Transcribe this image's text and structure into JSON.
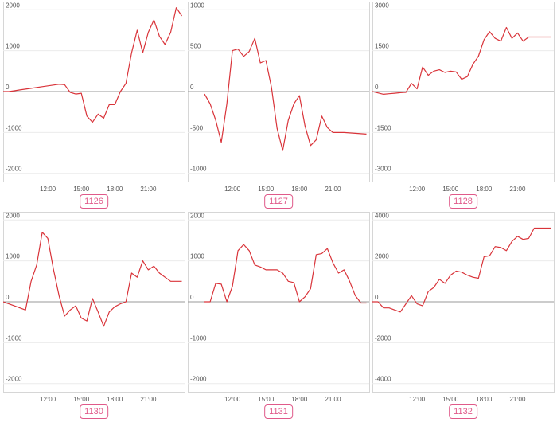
{
  "colors": {
    "line": "#d9343a",
    "label": "#e05a8a"
  },
  "chart_data": [
    {
      "type": "line",
      "label": "1126",
      "ylim": [
        -2200,
        2200
      ],
      "yticks": [
        2000,
        1000,
        0,
        -1000,
        -2000
      ],
      "xticks": [
        "12:00",
        "15:00",
        "18:00",
        "21:00"
      ],
      "x": [
        8.0,
        8.5,
        9,
        9.5,
        10,
        10.5,
        11,
        11.5,
        12,
        12.5,
        13,
        13.5,
        14,
        14.5,
        15,
        15.5,
        16,
        16.5,
        17,
        17.5,
        18,
        18.5,
        19,
        19.5,
        20,
        20.5,
        21,
        21.5,
        22,
        22.5,
        23,
        23.5,
        24
      ],
      "values": [
        0,
        0,
        20,
        40,
        60,
        80,
        100,
        120,
        140,
        160,
        180,
        170,
        -20,
        -60,
        -40,
        -600,
        -750,
        -550,
        -650,
        -320,
        -320,
        0,
        200,
        950,
        1500,
        950,
        1450,
        1750,
        1350,
        1150,
        1450,
        2050,
        1850
      ]
    },
    {
      "type": "line",
      "label": "1127",
      "ylim": [
        -1100,
        1100
      ],
      "yticks": [
        1000,
        500,
        0,
        -500,
        -1000
      ],
      "xticks": [
        "12:00",
        "15:00",
        "18:00",
        "21:00"
      ],
      "x": [
        9.5,
        10,
        10.5,
        11,
        11.5,
        12,
        12.5,
        13,
        13.5,
        14,
        14.5,
        15,
        15.5,
        16,
        16.5,
        17,
        17.5,
        18,
        18.5,
        19,
        19.5,
        20,
        20.5,
        21,
        22,
        23,
        24
      ],
      "values": [
        -30,
        -150,
        -350,
        -620,
        -150,
        500,
        520,
        430,
        490,
        650,
        350,
        380,
        50,
        -450,
        -720,
        -350,
        -150,
        -50,
        -420,
        -660,
        -590,
        -300,
        -440,
        -500,
        -500,
        -510,
        -520
      ]
    },
    {
      "type": "line",
      "label": "1128",
      "ylim": [
        -3300,
        3300
      ],
      "yticks": [
        3000,
        1500,
        0,
        -1500,
        -3000
      ],
      "xticks": [
        "12:00",
        "15:00",
        "18:00",
        "21:00"
      ],
      "x": [
        8.0,
        8.5,
        9,
        9.5,
        10,
        10.5,
        11,
        11.5,
        12,
        12.5,
        13,
        13.5,
        14,
        14.5,
        15,
        15.5,
        16,
        16.5,
        17,
        17.5,
        18,
        18.5,
        19,
        19.5,
        20,
        20.5,
        21,
        21.5,
        22,
        22.5,
        23,
        23.5,
        24
      ],
      "values": [
        0,
        -50,
        -100,
        -80,
        -60,
        -40,
        -30,
        300,
        100,
        900,
        600,
        750,
        800,
        700,
        750,
        720,
        450,
        550,
        1000,
        1300,
        1900,
        2200,
        1950,
        1850,
        2350,
        1950,
        2150,
        1850,
        2000,
        2000,
        2000,
        2000,
        2000
      ]
    },
    {
      "type": "line",
      "label": "1130",
      "ylim": [
        -2200,
        2200
      ],
      "yticks": [
        2000,
        1000,
        0,
        -1000,
        -2000
      ],
      "xticks": [
        "12:00",
        "15:00",
        "18:00",
        "21:00"
      ],
      "x": [
        8.0,
        8.5,
        9,
        9.5,
        10,
        10.5,
        11,
        11.5,
        12,
        12.5,
        13,
        13.5,
        14,
        14.5,
        15,
        15.5,
        16,
        16.5,
        17,
        17.5,
        18,
        18.5,
        19,
        19.5,
        20,
        20.5,
        21,
        21.5,
        22,
        22.5,
        23,
        23.5,
        24
      ],
      "values": [
        0,
        -50,
        -100,
        -150,
        -200,
        500,
        900,
        1700,
        1550,
        800,
        150,
        -350,
        -200,
        -100,
        -400,
        -470,
        80,
        -250,
        -600,
        -250,
        -120,
        -50,
        0,
        700,
        600,
        1000,
        780,
        870,
        700,
        600,
        500,
        500,
        500
      ]
    },
    {
      "type": "line",
      "label": "1131",
      "ylim": [
        -2200,
        2200
      ],
      "yticks": [
        2000,
        1000,
        0,
        -1000,
        -2000
      ],
      "xticks": [
        "12:00",
        "15:00",
        "18:00",
        "21:00"
      ],
      "x": [
        9.5,
        10,
        10.5,
        11,
        11.5,
        12,
        12.5,
        13,
        13.5,
        14,
        14.5,
        15,
        15.5,
        16,
        16.5,
        17,
        17.5,
        18,
        18.5,
        19,
        19.5,
        20,
        20.5,
        21,
        21.5,
        22,
        22.5,
        23,
        23.5,
        24
      ],
      "values": [
        0,
        0,
        450,
        430,
        0,
        380,
        1250,
        1400,
        1250,
        900,
        850,
        780,
        780,
        780,
        700,
        500,
        470,
        0,
        120,
        320,
        1150,
        1180,
        1300,
        950,
        700,
        780,
        500,
        150,
        -30,
        -30
      ]
    },
    {
      "type": "line",
      "label": "1132",
      "ylim": [
        -4400,
        4400
      ],
      "yticks": [
        4000,
        2000,
        0,
        -2000,
        -4000
      ],
      "xticks": [
        "12:00",
        "15:00",
        "18:00",
        "21:00"
      ],
      "x": [
        8.0,
        8.5,
        9,
        9.5,
        10,
        10.5,
        11,
        11.5,
        12,
        12.5,
        13,
        13.5,
        14,
        14.5,
        15,
        15.5,
        16,
        16.5,
        17,
        17.5,
        18,
        18.5,
        19,
        19.5,
        20,
        20.5,
        21,
        21.5,
        22,
        22.5,
        23,
        23.5,
        24
      ],
      "values": [
        0,
        0,
        -300,
        -300,
        -400,
        -500,
        -100,
        300,
        -100,
        -200,
        500,
        700,
        1100,
        900,
        1300,
        1500,
        1450,
        1300,
        1200,
        1150,
        2200,
        2250,
        2700,
        2650,
        2500,
        2950,
        3200,
        3050,
        3100,
        3600,
        3600,
        3600,
        3600
      ]
    }
  ]
}
